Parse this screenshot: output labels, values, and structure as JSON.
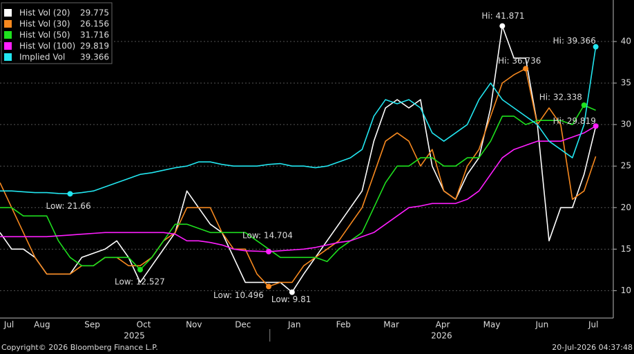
{
  "chart_data": {
    "type": "line",
    "x": [
      0,
      1,
      2,
      3,
      4,
      5,
      6,
      7,
      8,
      9,
      10,
      11,
      12,
      13,
      14,
      15,
      16,
      17,
      18,
      19,
      20,
      21,
      22,
      23,
      24,
      25,
      26,
      27,
      28,
      29,
      30,
      31,
      32,
      33,
      34,
      35,
      36,
      37,
      38,
      39,
      40,
      41,
      42,
      43,
      44,
      45,
      46,
      47,
      48,
      49,
      50,
      51
    ],
    "xlim": [
      0,
      52.5
    ],
    "xticks": [
      {
        "value": 0.77,
        "label": "Jul"
      },
      {
        "value": 3.6,
        "label": "Aug"
      },
      {
        "value": 7.9,
        "label": "Sep"
      },
      {
        "value": 12.3,
        "label": "Oct"
      },
      {
        "value": 16.6,
        "label": "Nov"
      },
      {
        "value": 20.8,
        "label": "Dec"
      },
      {
        "value": 25.2,
        "label": "Jan"
      },
      {
        "value": 29.4,
        "label": "Feb"
      },
      {
        "value": 33.5,
        "label": "Mar"
      },
      {
        "value": 37.9,
        "label": "Apr"
      },
      {
        "value": 42.1,
        "label": "May"
      },
      {
        "value": 46.4,
        "label": "Jun"
      },
      {
        "value": 50.8,
        "label": "Jul"
      }
    ],
    "xgroups": [
      {
        "value": 11.5,
        "label": "2025"
      },
      {
        "value": 37.8,
        "label": "2026"
      }
    ],
    "xgroup_divider": 23.1,
    "ylim": [
      6.7,
      45
    ],
    "yticks": [
      10,
      15,
      20,
      25,
      30,
      35,
      40
    ],
    "grid": true,
    "legend": "upper left",
    "series": [
      {
        "name": "Hist Vol (20)",
        "color": "#ffffff",
        "legend_value": 29.775,
        "values": [
          17,
          15,
          15,
          14,
          12,
          12,
          12,
          14,
          14.5,
          15,
          16,
          14,
          11,
          13,
          15,
          17,
          22,
          20,
          18,
          17,
          14,
          11,
          11,
          11,
          11,
          9.81,
          12,
          14,
          16,
          18,
          20,
          22,
          28,
          32,
          33,
          32,
          33,
          25,
          22,
          21,
          24,
          26,
          32,
          41.871,
          38,
          38,
          30,
          16,
          20,
          20,
          24,
          29.775
        ]
      },
      {
        "name": "Hist Vol (30)",
        "color": "#f7891f",
        "legend_value": 26.156,
        "values": [
          23,
          20,
          17,
          14,
          12,
          12,
          12,
          13,
          13,
          14,
          14,
          13,
          13,
          14,
          16,
          17,
          20,
          20,
          20,
          17,
          15,
          15,
          12,
          10.496,
          11,
          11,
          13,
          14,
          15,
          16,
          18,
          20,
          24,
          28,
          29,
          28,
          25,
          27,
          22,
          21,
          25,
          27,
          31,
          35,
          36,
          36.736,
          30,
          32,
          30,
          21,
          22,
          26.156
        ]
      },
      {
        "name": "Hist Vol (50)",
        "color": "#1ee01e",
        "legend_value": 31.716,
        "values": [
          20,
          20,
          19,
          19,
          19,
          16,
          14,
          13,
          13,
          14,
          14,
          14,
          12.527,
          14,
          16,
          18,
          18,
          17.5,
          17,
          17,
          17,
          17,
          16,
          15,
          14,
          14,
          14,
          14,
          13.5,
          15,
          16,
          17,
          20,
          23,
          25,
          25,
          26,
          26,
          25,
          25,
          26,
          26,
          28,
          31,
          31,
          30,
          30.5,
          30.5,
          30.5,
          30,
          32.338,
          31.716
        ]
      },
      {
        "name": "Hist Vol (100)",
        "color": "#ff1eff",
        "legend_value": 29.819,
        "values": [
          16.5,
          16.5,
          16.5,
          16.5,
          16.5,
          16.6,
          16.7,
          16.8,
          16.9,
          17,
          17,
          17,
          17,
          17,
          17,
          16.8,
          16,
          16,
          15.8,
          15.5,
          15,
          14.8,
          14.75,
          14.704,
          14.8,
          14.9,
          15,
          15.2,
          15.5,
          15.8,
          16,
          16.5,
          17,
          18,
          19,
          20,
          20.2,
          20.5,
          20.5,
          20.5,
          21,
          22,
          24,
          26,
          27,
          27.5,
          28,
          28,
          28,
          28.5,
          29,
          29.819
        ]
      },
      {
        "name": "Implied Vol",
        "color": "#22e6f0",
        "legend_value": 39.366,
        "values": [
          22,
          22,
          21.9,
          21.8,
          21.8,
          21.7,
          21.66,
          21.8,
          22,
          22.5,
          23,
          23.5,
          24,
          24.2,
          24.5,
          24.8,
          25,
          25.5,
          25.5,
          25.2,
          25,
          25,
          25,
          25.2,
          25.3,
          25,
          25,
          24.8,
          25,
          25.5,
          26,
          27,
          31,
          33,
          32.5,
          33,
          32,
          29,
          28,
          29,
          30,
          33,
          35,
          33,
          32,
          31,
          30,
          28,
          27,
          26,
          30,
          39.366
        ]
      }
    ],
    "annotations": [
      {
        "series": 4,
        "index": 6,
        "label": "Low: 21.66"
      },
      {
        "series": 2,
        "index": 12,
        "label": "Low: 12.527"
      },
      {
        "series": 1,
        "index": 23,
        "label": "Low: 10.496"
      },
      {
        "series": 3,
        "index": 23,
        "label": "Low: 14.704"
      },
      {
        "series": 0,
        "index": 25,
        "label": "Low: 9.81"
      },
      {
        "series": 0,
        "index": 43,
        "label": "Hi: 41.871"
      },
      {
        "series": 1,
        "index": 45,
        "label": "Hi: 36.736"
      },
      {
        "series": 2,
        "index": 50,
        "label": "Hi: 32.338"
      },
      {
        "series": 3,
        "index": 51,
        "label": "Hi: 29.819"
      },
      {
        "series": 4,
        "index": 51,
        "label": "Hi: 39.366"
      }
    ],
    "footer_left": "Copyright© 2026 Bloomberg Finance L.P.",
    "footer_right": "20-Jul-2026 04:37:48"
  }
}
